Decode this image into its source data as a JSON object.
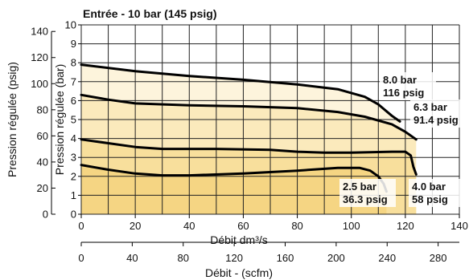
{
  "chart_data": {
    "type": "line",
    "title": "Entrée - 10 bar (145 psig)",
    "xlabel": "Débit dm³/s",
    "x2label": "Débit - (scfm)",
    "ylabel": "Pression régulée (bar)",
    "y2label": "Pression régulée (psig)",
    "xlim": [
      0,
      140
    ],
    "ylim": [
      0,
      10
    ],
    "x_ticks": [
      "0",
      "20",
      "40",
      "60",
      "80",
      "100",
      "120",
      "140"
    ],
    "x2_ticks": [
      "0",
      "40",
      "80",
      "120",
      "160",
      "200",
      "240",
      "280"
    ],
    "y_ticks": [
      "0",
      "1",
      "2",
      "3",
      "4",
      "5",
      "6",
      "7",
      "8",
      "9",
      "10"
    ],
    "y2_ticks": [
      "0",
      "20",
      "40",
      "60",
      "80",
      "100",
      "120",
      "140"
    ],
    "grid": true,
    "series": [
      {
        "name": "8.0 bar 116 psig",
        "label_lines": [
          "8.0 bar",
          "116 psig"
        ],
        "fill_color": "#fdf4dc",
        "x": [
          0,
          20,
          40,
          60,
          80,
          95,
          105,
          110,
          115,
          118
        ],
        "y": [
          7.9,
          7.55,
          7.3,
          7.1,
          6.85,
          6.6,
          6.2,
          5.8,
          5.2,
          4.9
        ]
      },
      {
        "name": "6.3 bar 91.4 psig",
        "label_lines": [
          "6.3 bar",
          "91.4 psig"
        ],
        "fill_color": "#fbeabc",
        "x": [
          0,
          10,
          20,
          40,
          60,
          80,
          95,
          105,
          115,
          120,
          124
        ],
        "y": [
          6.3,
          6.05,
          5.85,
          5.75,
          5.7,
          5.6,
          5.4,
          5.15,
          4.75,
          4.35,
          3.95
        ]
      },
      {
        "name": "4.0 bar 58 psig",
        "label_lines": [
          "4.0 bar",
          "58 psig"
        ],
        "fill_color": "#f8df9c",
        "x": [
          0,
          10,
          20,
          30,
          50,
          70,
          80,
          90,
          100,
          115,
          120,
          122,
          123,
          124
        ],
        "y": [
          3.95,
          3.75,
          3.55,
          3.45,
          3.45,
          3.4,
          3.3,
          3.25,
          3.25,
          3.3,
          3.3,
          3.1,
          2.5,
          2.1
        ]
      },
      {
        "name": "2.5 bar 36.3 psig",
        "label_lines": [
          "2.5 bar",
          "36.3 psig"
        ],
        "fill_color": "#f5d583",
        "x": [
          0,
          10,
          20,
          30,
          40,
          60,
          80,
          95,
          103,
          107,
          110,
          112,
          113
        ],
        "y": [
          2.6,
          2.35,
          2.15,
          2.05,
          2.05,
          2.15,
          2.3,
          2.45,
          2.45,
          2.3,
          2.0,
          1.6,
          1.2
        ]
      }
    ]
  }
}
